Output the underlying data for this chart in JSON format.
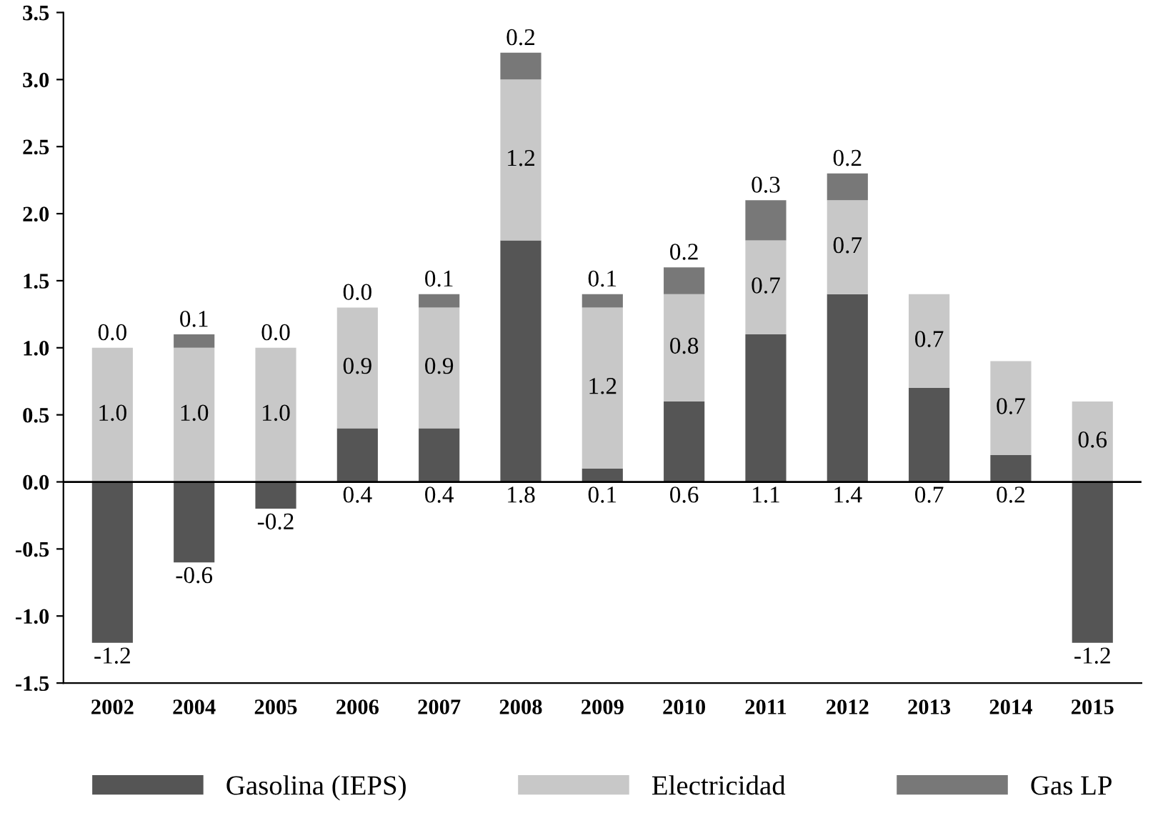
{
  "chart_data": {
    "type": "bar",
    "stacked": true,
    "categories": [
      "2002",
      "2004",
      "2005",
      "2006",
      "2007",
      "2008",
      "2009",
      "2010",
      "2011",
      "2012",
      "2013",
      "2014",
      "2015"
    ],
    "series": [
      {
        "name": "Gasolina (IEPS)",
        "color": "#555555",
        "values": [
          -1.2,
          -0.6,
          -0.2,
          0.4,
          0.4,
          1.8,
          0.1,
          0.6,
          1.1,
          1.4,
          0.7,
          0.2,
          -1.2
        ],
        "value_labels": [
          "-1.2",
          "-0.6",
          "-0.2",
          "0.4",
          "0.4",
          "1.8",
          "0.1",
          "0.6",
          "1.1",
          "1.4",
          "0.7",
          "0.2",
          "-1.2"
        ]
      },
      {
        "name": "Electricidad",
        "color": "#c8c8c8",
        "values": [
          1.0,
          1.0,
          1.0,
          0.9,
          0.9,
          1.2,
          1.2,
          0.8,
          0.7,
          0.7,
          0.7,
          0.7,
          0.6
        ],
        "value_labels": [
          "1.0",
          "1.0",
          "1.0",
          "0.9",
          "0.9",
          "1.2",
          "1.2",
          "0.8",
          "0.7",
          "0.7",
          "0.7",
          "0.7",
          "0.6"
        ]
      },
      {
        "name": "Gas LP",
        "color": "#787878",
        "values": [
          0.0,
          0.1,
          0.0,
          0.0,
          0.1,
          0.2,
          0.1,
          0.2,
          0.3,
          0.2,
          null,
          null,
          null
        ],
        "value_labels": [
          "0.0",
          "0.1",
          "0.0",
          "0.0",
          "0.1",
          "0.2",
          "0.1",
          "0.2",
          "0.3",
          "0.2",
          null,
          null,
          null
        ]
      }
    ],
    "ylim": [
      -1.5,
      3.5
    ],
    "yticks": [
      -1.5,
      {
        "value": -1,
        "label": "-1.0"
      },
      -0.5,
      {
        "value": 0,
        "label": "0.0"
      },
      0.5,
      {
        "value": 1,
        "label": "1.0"
      },
      1.5,
      {
        "value": 2,
        "label": "2.0"
      },
      2.5,
      {
        "value": 3,
        "label": "3.0"
      },
      3.5
    ],
    "ref_lines": [
      {
        "axis": "y",
        "value": 0
      }
    ],
    "legend": "bottom"
  }
}
